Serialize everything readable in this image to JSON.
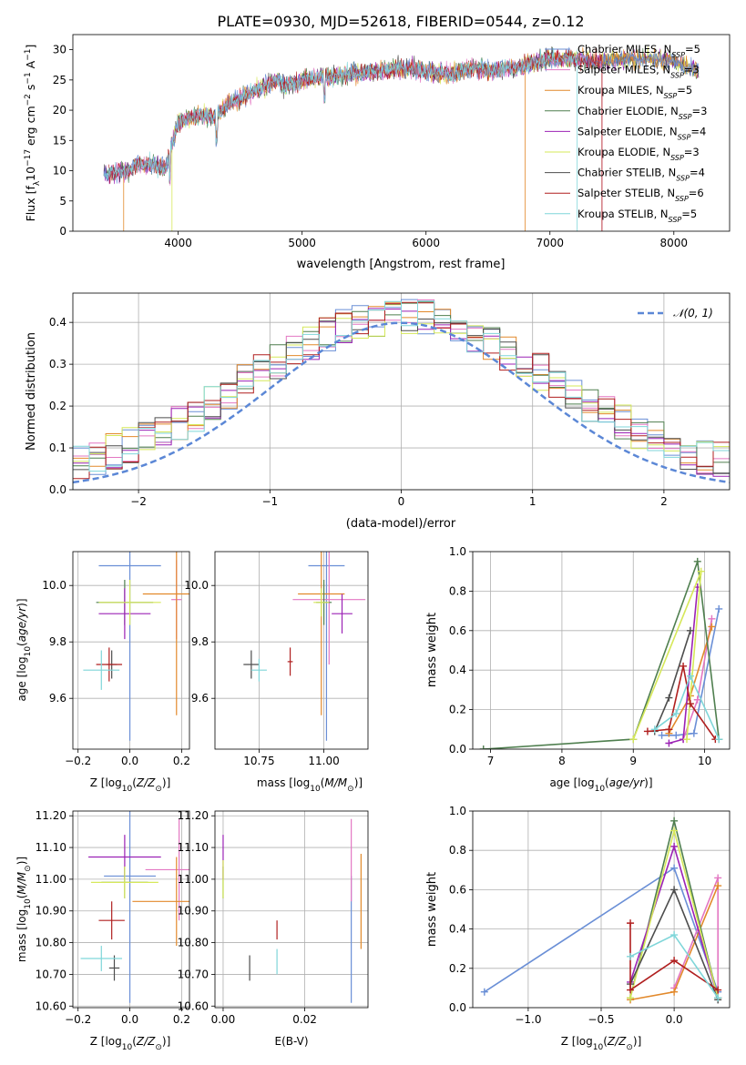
{
  "figure_title": "PLATE=0930, MJD=52618, FIBERID=0544, z=0.12",
  "series_styles": [
    {
      "name": "Chabrier MILES",
      "nssp": "5",
      "color": "#6a8fd6"
    },
    {
      "name": "Salpeter MILES",
      "nssp": "3",
      "color": "#e377c2"
    },
    {
      "name": "Kroupa MILES",
      "nssp": "5",
      "color": "#e2892b"
    },
    {
      "name": "Chabrier ELODIE",
      "nssp": "3",
      "color": "#4f7f4f"
    },
    {
      "name": "Salpeter ELODIE",
      "nssp": "4",
      "color": "#9b22b5"
    },
    {
      "name": "Kroupa ELODIE",
      "nssp": "3",
      "color": "#d6e85a"
    },
    {
      "name": "Chabrier STELIB",
      "nssp": "4",
      "color": "#4d4d4d"
    },
    {
      "name": "Salpeter STELIB",
      "nssp": "6",
      "color": "#b01f1f"
    },
    {
      "name": "Kroupa STELIB",
      "nssp": "5",
      "color": "#7fd6d9"
    }
  ],
  "chart_data": [
    {
      "id": "spectrum",
      "type": "line",
      "title": "PLATE=0930, MJD=52618, FIBERID=0544, z=0.12",
      "xlabel": "wavelength [Angstrom, rest frame]",
      "ylabel": "Flux [fλ10⁻¹⁷ erg cm⁻² s⁻¹ A⁻¹]",
      "xlim": [
        3150,
        8450
      ],
      "ylim": [
        0,
        32.5
      ],
      "xticks": [
        4000,
        5000,
        6000,
        7000,
        8000
      ],
      "yticks": [
        0,
        5,
        10,
        15,
        20,
        25,
        30
      ],
      "grid": false,
      "legend_position": "upper-right",
      "legend": [
        "Chabrier MILES, NSSP=5",
        "Salpeter MILES, NSSP=3",
        "Kroupa MILES, NSSP=5",
        "Chabrier ELODIE, NSSP=3",
        "Salpeter ELODIE, NSSP=4",
        "Kroupa ELODIE, NSSP=3",
        "Chabrier STELIB, NSSP=4",
        "Salpeter STELIB, NSSP=6",
        "Kroupa STELIB, NSSP=5"
      ],
      "continuum_knots": {
        "x": [
          3400,
          3600,
          3650,
          3800,
          3900,
          4000,
          4100,
          4300,
          4400,
          4600,
          4800,
          4860,
          5000,
          5200,
          5400,
          5600,
          5800,
          6000,
          6200,
          6400,
          6560,
          6700,
          6800,
          7000,
          7200,
          7400,
          7600,
          7800,
          8000,
          8200
        ],
        "y": [
          9.5,
          10,
          11,
          11,
          10.5,
          18,
          19,
          19,
          21,
          23,
          25,
          24,
          25,
          25.5,
          26,
          26.5,
          27,
          26.5,
          26,
          27,
          26.5,
          27,
          27.5,
          28.5,
          28.5,
          28,
          28.5,
          28.5,
          28,
          26.5
        ]
      }
    },
    {
      "id": "residuals",
      "type": "histogram",
      "xlabel": "(data-model)/error",
      "ylabel": "Normed distribution",
      "xlim": [
        -2.5,
        2.5
      ],
      "ylim": [
        0,
        0.47
      ],
      "xticks": [
        -2,
        -1,
        0,
        1,
        2
      ],
      "yticks": [
        0.0,
        0.1,
        0.2,
        0.3,
        0.4
      ],
      "grid": true,
      "bin_width": 0.125,
      "reference_curve": {
        "label": "𝒩(0, 1)",
        "mean": 0,
        "sigma": 1,
        "color": "#5b87d6"
      },
      "legend_position": "upper-right"
    },
    {
      "id": "age_vs_Z",
      "type": "scatter",
      "xlabel": "Z [log10(Z/Z☉)]",
      "ylabel": "age  [log10(age/yr)]",
      "xlim": [
        -0.22,
        0.23
      ],
      "ylim": [
        9.42,
        10.12
      ],
      "xticks": [
        -0.2,
        0.0,
        0.2
      ],
      "yticks": [
        9.6,
        9.8,
        10.0
      ],
      "grid": true,
      "points": [
        {
          "x": 0.0,
          "y": 10.07,
          "xerr": 0.12,
          "yerr": 0.62,
          "series": 0
        },
        {
          "x": 0.18,
          "y": 9.95,
          "xerr": 0.02,
          "yerr": 0.14,
          "series": 1
        },
        {
          "x": 0.18,
          "y": 9.97,
          "xerr": 0.13,
          "yerr": 0.43,
          "series": 2
        },
        {
          "x": -0.02,
          "y": 9.94,
          "xerr": 0.11,
          "yerr": 0.08,
          "series": 3
        },
        {
          "x": -0.02,
          "y": 9.9,
          "xerr": 0.1,
          "yerr": 0.09,
          "series": 4
        },
        {
          "x": 0.0,
          "y": 9.94,
          "xerr": 0.12,
          "yerr": 0.08,
          "series": 5
        },
        {
          "x": -0.07,
          "y": 9.72,
          "xerr": 0.02,
          "yerr": 0.05,
          "series": 6
        },
        {
          "x": -0.08,
          "y": 9.72,
          "xerr": 0.05,
          "yerr": 0.06,
          "series": 7
        },
        {
          "x": -0.11,
          "y": 9.7,
          "xerr": 0.07,
          "yerr": 0.07,
          "series": 8
        }
      ]
    },
    {
      "id": "age_vs_mass",
      "type": "scatter",
      "xlabel": "mass [log10(M/M☉)]",
      "ylabel": "",
      "xlim": [
        10.58,
        11.17
      ],
      "ylim": [
        9.42,
        10.12
      ],
      "xticks": [
        10.75,
        11.0
      ],
      "yticks": [
        9.6,
        9.8,
        10.0
      ],
      "xtick_labels": [
        "10.75",
        "11.00"
      ],
      "grid": true,
      "points": [
        {
          "x": 11.01,
          "y": 10.07,
          "xerr": 0.07,
          "yerr": 0.62,
          "series": 0
        },
        {
          "x": 11.02,
          "y": 9.95,
          "xerr": 0.14,
          "yerr": 0.23,
          "series": 1
        },
        {
          "x": 10.99,
          "y": 9.97,
          "xerr": 0.09,
          "yerr": 0.43,
          "series": 2
        },
        {
          "x": 11.0,
          "y": 9.94,
          "xerr": 0.03,
          "yerr": 0.08,
          "series": 3
        },
        {
          "x": 11.07,
          "y": 9.9,
          "xerr": 0.04,
          "yerr": 0.07,
          "series": 4
        },
        {
          "x": 10.99,
          "y": 9.94,
          "xerr": 0.03,
          "yerr": 0.05,
          "series": 5
        },
        {
          "x": 10.72,
          "y": 9.72,
          "xerr": 0.03,
          "yerr": 0.05,
          "series": 6
        },
        {
          "x": 10.87,
          "y": 9.73,
          "xerr": 0.01,
          "yerr": 0.05,
          "series": 7
        },
        {
          "x": 10.75,
          "y": 9.7,
          "xerr": 0.03,
          "yerr": 0.04,
          "series": 8
        }
      ]
    },
    {
      "id": "weight_vs_age",
      "type": "line",
      "xlabel": "age  [log10(age/yr)]",
      "ylabel": "mass weight",
      "xlim": [
        6.75,
        10.35
      ],
      "ylim": [
        0,
        1.0
      ],
      "xticks": [
        7,
        8,
        9,
        10
      ],
      "yticks": [
        0.0,
        0.2,
        0.4,
        0.6,
        0.8,
        1.0
      ],
      "grid": true,
      "series": [
        {
          "series": 0,
          "x": [
            9.4,
            9.6,
            9.85,
            10.2
          ],
          "y": [
            0.07,
            0.07,
            0.08,
            0.71
          ]
        },
        {
          "series": 1,
          "x": [
            9.7,
            9.9,
            10.1
          ],
          "y": [
            0.05,
            0.25,
            0.66
          ]
        },
        {
          "series": 2,
          "x": [
            9.5,
            9.8,
            10.1
          ],
          "y": [
            0.08,
            0.27,
            0.62
          ]
        },
        {
          "series": 3,
          "x": [
            6.9,
            9.0,
            9.9,
            10.2
          ],
          "y": [
            0.0,
            0.05,
            0.95,
            0.05
          ]
        },
        {
          "series": 4,
          "x": [
            9.5,
            9.7,
            9.9
          ],
          "y": [
            0.03,
            0.05,
            0.82
          ]
        },
        {
          "series": 5,
          "x": [
            9.0,
            9.95,
            9.75
          ],
          "y": [
            0.05,
            0.9,
            0.05
          ]
        },
        {
          "series": 6,
          "x": [
            9.3,
            9.5,
            9.8
          ],
          "y": [
            0.09,
            0.26,
            0.6
          ]
        },
        {
          "series": 7,
          "x": [
            9.2,
            9.5,
            9.7,
            9.8,
            10.15
          ],
          "y": [
            0.09,
            0.1,
            0.42,
            0.23,
            0.05
          ]
        },
        {
          "series": 8,
          "x": [
            9.3,
            9.6,
            9.8,
            10.2
          ],
          "y": [
            0.1,
            0.18,
            0.37,
            0.05
          ]
        }
      ]
    },
    {
      "id": "mass_vs_Z",
      "type": "scatter",
      "xlabel": "Z [log10(Z/Z☉)]",
      "ylabel": "mass [log10(M/M☉)]",
      "xlim": [
        -0.22,
        0.23
      ],
      "ylim": [
        10.595,
        11.215
      ],
      "xticks": [
        -0.2,
        0.0,
        0.2
      ],
      "yticks": [
        10.6,
        10.7,
        10.8,
        10.9,
        11.0,
        11.1,
        11.2
      ],
      "grid": true,
      "points": [
        {
          "x": 0.0,
          "y": 11.01,
          "xerr": 0.1,
          "yerr": 0.4,
          "series": 0
        },
        {
          "x": 0.19,
          "y": 11.03,
          "xerr": 0.13,
          "yerr": 0.16,
          "series": 1
        },
        {
          "x": 0.18,
          "y": 10.93,
          "xerr": 0.17,
          "yerr": 0.14,
          "series": 2
        },
        {
          "x": -0.02,
          "y": 10.99,
          "xerr": 0.09,
          "yerr": 0.05,
          "series": 3
        },
        {
          "x": -0.02,
          "y": 11.07,
          "xerr": 0.14,
          "yerr": 0.07,
          "series": 4
        },
        {
          "x": -0.02,
          "y": 10.99,
          "xerr": 0.13,
          "yerr": 0.05,
          "series": 5
        },
        {
          "x": -0.06,
          "y": 10.72,
          "xerr": 0.02,
          "yerr": 0.04,
          "series": 6
        },
        {
          "x": -0.07,
          "y": 10.87,
          "xerr": 0.05,
          "yerr": 0.06,
          "series": 7
        },
        {
          "x": -0.11,
          "y": 10.75,
          "xerr": 0.08,
          "yerr": 0.04,
          "series": 8
        }
      ]
    },
    {
      "id": "mass_vs_ebv",
      "type": "scatter",
      "xlabel": "E(B-V)",
      "ylabel": "",
      "xlim": [
        -0.002,
        0.0355
      ],
      "ylim": [
        10.595,
        11.215
      ],
      "xticks": [
        0.0,
        0.02
      ],
      "yticks": [
        10.6,
        10.7,
        10.8,
        10.9,
        11.0,
        11.1,
        11.2
      ],
      "xtick_labels": [
        "0.00",
        "0.02"
      ],
      "grid": true,
      "points": [
        {
          "x": 0.0314,
          "y": 10.81,
          "xerr": 0.0,
          "yerr": 0.2,
          "series": 0
        },
        {
          "x": 0.0314,
          "y": 11.06,
          "xerr": 0.0,
          "yerr": 0.13,
          "series": 1
        },
        {
          "x": 0.0338,
          "y": 10.93,
          "xerr": 0.0,
          "yerr": 0.15,
          "series": 2
        },
        {
          "x": 0.0,
          "y": 10.99,
          "xerr": 0.0,
          "yerr": 0.05,
          "series": 3
        },
        {
          "x": 0.0,
          "y": 11.07,
          "xerr": 0.0,
          "yerr": 0.07,
          "series": 4
        },
        {
          "x": 0.0,
          "y": 11.0,
          "xerr": 0.0,
          "yerr": 0.06,
          "series": 5
        },
        {
          "x": 0.0065,
          "y": 10.72,
          "xerr": 0.0,
          "yerr": 0.04,
          "series": 6
        },
        {
          "x": 0.0132,
          "y": 10.84,
          "xerr": 0.0,
          "yerr": 0.03,
          "series": 7
        },
        {
          "x": 0.0132,
          "y": 10.74,
          "xerr": 0.0,
          "yerr": 0.04,
          "series": 8
        }
      ]
    },
    {
      "id": "weight_vs_Z",
      "type": "line",
      "xlabel": "Z [log10(Z/Z☉)]",
      "ylabel": "mass weight",
      "xlim": [
        -1.38,
        0.38
      ],
      "ylim": [
        0,
        1.0
      ],
      "xticks": [
        -1.0,
        -0.5,
        0.0
      ],
      "yticks": [
        0.0,
        0.2,
        0.4,
        0.6,
        0.8,
        1.0
      ],
      "grid": true,
      "series": [
        {
          "series": 0,
          "x": [
            -1.3,
            0.0,
            0.3
          ],
          "y": [
            0.08,
            0.71,
            0.08
          ]
        },
        {
          "series": 1,
          "x": [
            0.0,
            0.3,
            0.3
          ],
          "y": [
            0.1,
            0.66,
            0.05
          ]
        },
        {
          "series": 2,
          "x": [
            -0.3,
            0.0,
            0.3
          ],
          "y": [
            0.04,
            0.08,
            0.62
          ]
        },
        {
          "series": 3,
          "x": [
            -0.3,
            0.0,
            0.3
          ],
          "y": [
            0.05,
            0.95,
            0.05
          ]
        },
        {
          "series": 4,
          "x": [
            -0.3,
            0.0,
            0.3
          ],
          "y": [
            0.13,
            0.82,
            0.05
          ]
        },
        {
          "series": 5,
          "x": [
            -0.3,
            0.0,
            0.3
          ],
          "y": [
            0.05,
            0.9,
            0.05
          ]
        },
        {
          "series": 6,
          "x": [
            -0.3,
            0.0,
            0.3
          ],
          "y": [
            0.12,
            0.6,
            0.04
          ]
        },
        {
          "series": 7,
          "x": [
            -0.3,
            -0.3,
            0.0,
            0.3
          ],
          "y": [
            0.43,
            0.09,
            0.24,
            0.09
          ]
        },
        {
          "series": 8,
          "x": [
            -0.3,
            0.0,
            0.3
          ],
          "y": [
            0.26,
            0.37,
            0.05
          ]
        }
      ]
    }
  ]
}
